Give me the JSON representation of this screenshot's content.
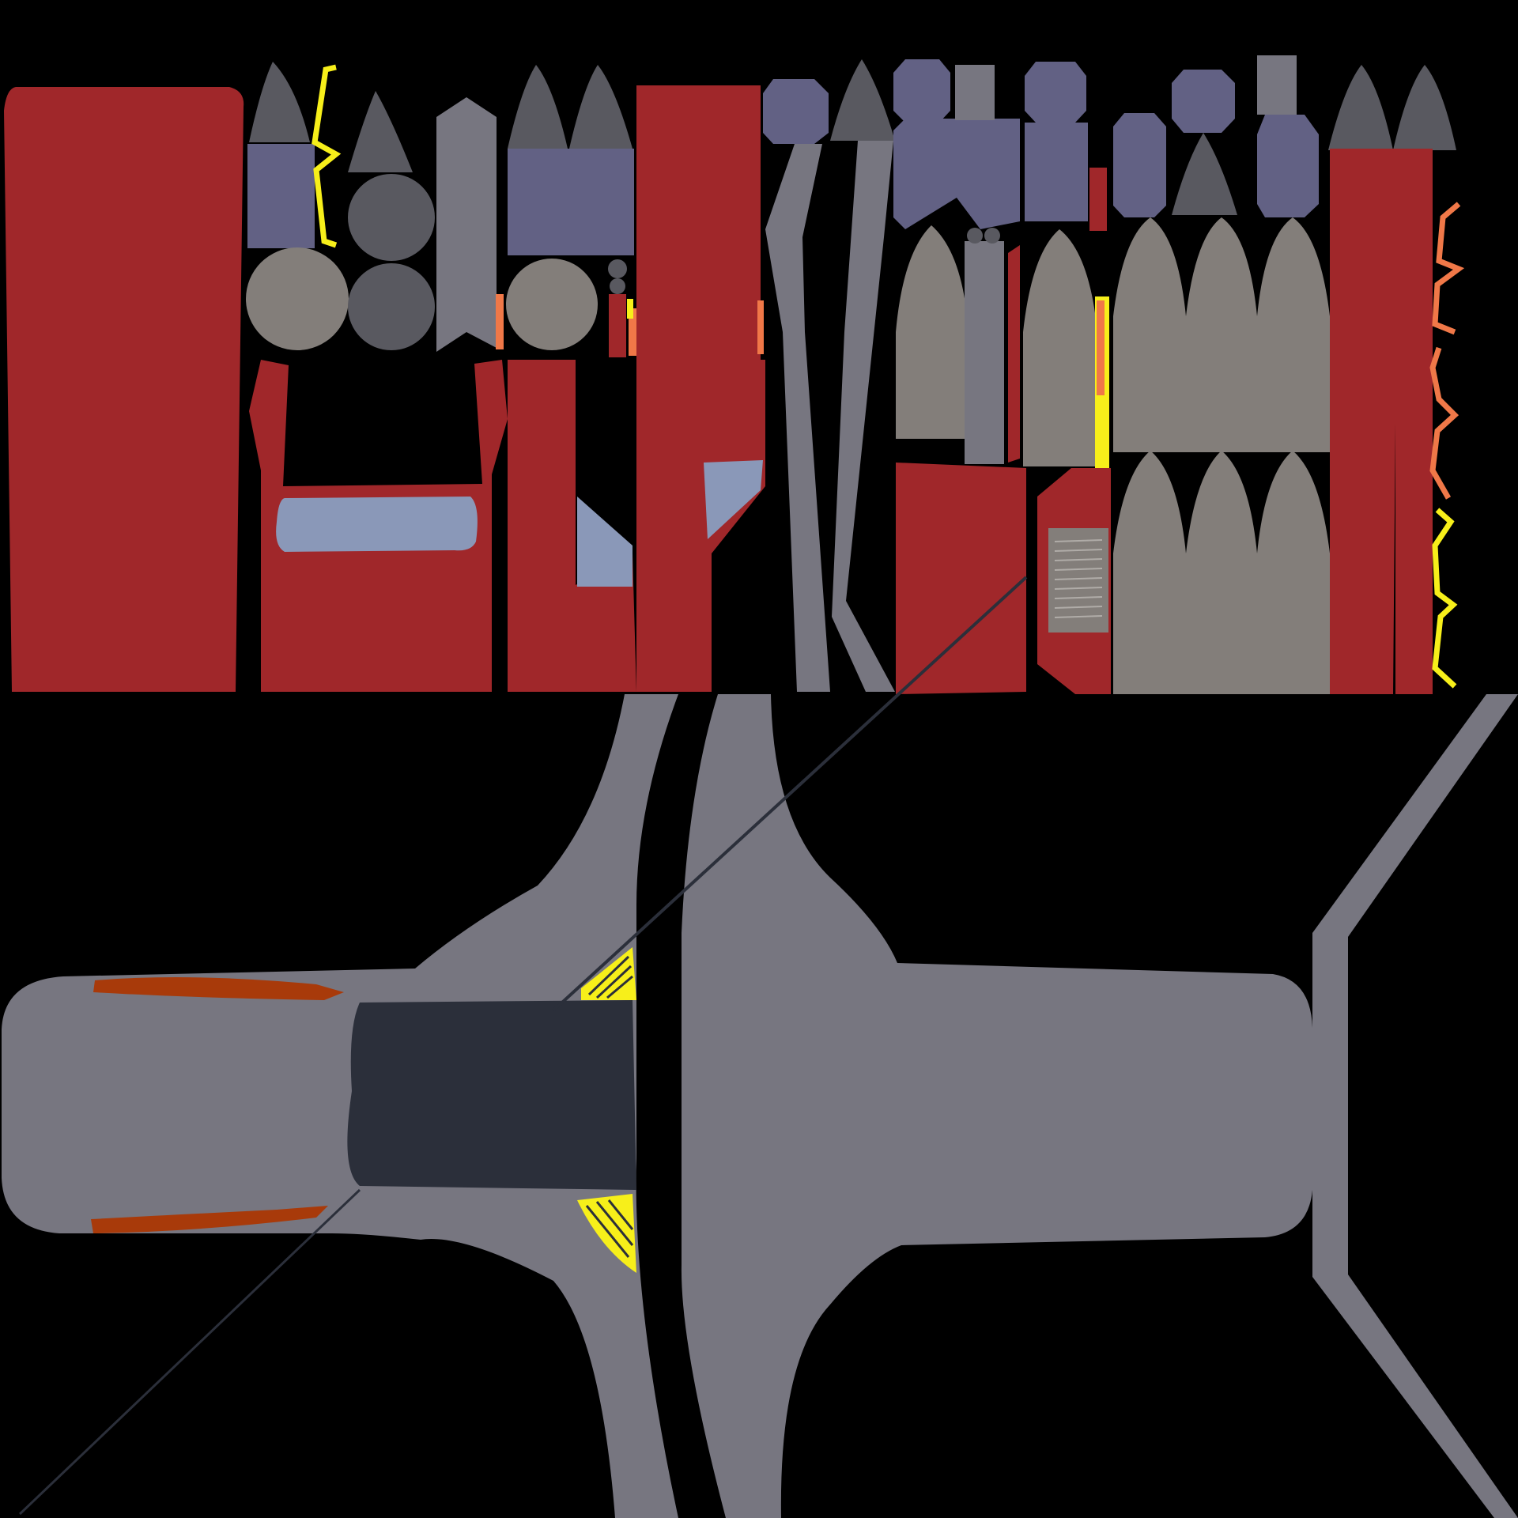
{
  "texture_atlas": {
    "background": "#000000",
    "palette": {
      "red": "#a0272a",
      "red_dark": "#8e2024",
      "gray_body": "#777680",
      "gray_dark": "#595960",
      "gray_warm": "#837e7a",
      "slate_blue": "#626184",
      "light_blue": "#8a98b8",
      "navy_panel": "#2b2f3a",
      "yellow": "#f7ef1a",
      "orange": "#f07848",
      "rust": "#a83a0a"
    },
    "regions": [
      "upper-panels",
      "lower-panels"
    ]
  }
}
